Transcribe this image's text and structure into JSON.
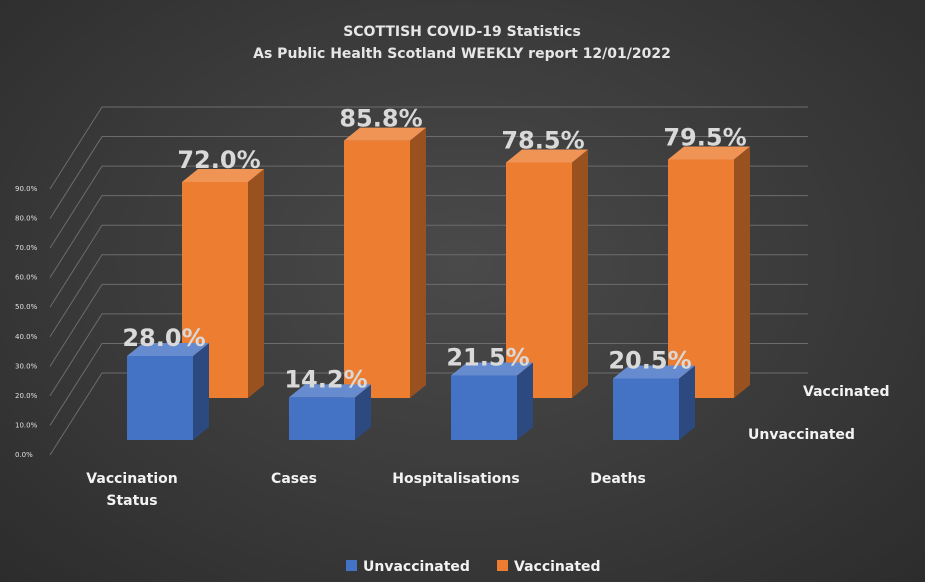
{
  "chart_data": {
    "type": "bar",
    "title": "SCOTTISH COVID-19 Statistics",
    "subtitle": "As Public Health Scotland WEEKLY report 12/01/2022",
    "categories": [
      "Vaccination Status",
      "Cases",
      "Hospitalisations",
      "Deaths"
    ],
    "category_lines": [
      [
        "Vaccination",
        "Status"
      ],
      [
        "Cases"
      ],
      [
        "Hospitalisations"
      ],
      [
        "Deaths"
      ]
    ],
    "series": [
      {
        "name": "Unvaccinated",
        "values": [
          28.0,
          14.2,
          21.5,
          20.5
        ],
        "labels": [
          "28.0%",
          "14.2%",
          "21.5%",
          "20.5%"
        ],
        "color": "#4472c4"
      },
      {
        "name": "Vaccinated",
        "values": [
          72.0,
          85.8,
          78.5,
          79.5
        ],
        "labels": [
          "72.0%",
          "85.8%",
          "78.5%",
          "79.5%"
        ],
        "color": "#ed7d31"
      }
    ],
    "ylim": [
      0,
      90
    ],
    "yticks": [
      "0.0%",
      "10.0%",
      "20.0%",
      "30.0%",
      "40.0%",
      "50.0%",
      "60.0%",
      "70.0%",
      "80.0%",
      "90.0%"
    ],
    "depth_labels": [
      "Vaccinated",
      "Unvaccinated"
    ],
    "legend_position": "bottom",
    "grid": true,
    "style": "3d-column"
  }
}
